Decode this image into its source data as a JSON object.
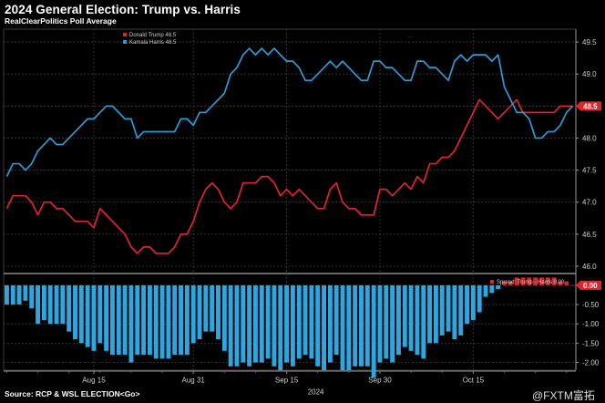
{
  "title": "2024 General Election: Trump vs. Harris",
  "subtitle": "RealClearPolitics Poll Average",
  "source": "Source: RCP & WSL ELECTION<Go>",
  "watermark": "@FXTM富拓",
  "chart_data": [
    {
      "type": "line",
      "x_tick_labels": [
        "Aug 15",
        "Aug 31",
        "Sep 15",
        "Sep 30",
        "Oct 15"
      ],
      "x_year_label": "2024",
      "ylim": [
        45.9,
        49.7
      ],
      "y_ticks": [
        46.0,
        46.5,
        47.0,
        47.5,
        48.0,
        48.5,
        49.0,
        49.5
      ],
      "y_tick_labels": [
        "46.0",
        "46.5",
        "47.0",
        "47.5",
        "48.0",
        "48.5",
        "49.0",
        "49.5"
      ],
      "axis_side": "right",
      "grid": true,
      "legend_placement": "top-left",
      "n_days": 92,
      "series": [
        {
          "name": "Donald Trump",
          "legend_value": "48.5",
          "color": "#e0242c",
          "last_value_label": "48.5",
          "values": [
            46.9,
            47.1,
            47.1,
            47.1,
            47.0,
            46.8,
            47.0,
            47.0,
            46.9,
            46.9,
            46.8,
            46.7,
            46.7,
            46.7,
            46.6,
            46.9,
            46.8,
            46.7,
            46.6,
            46.5,
            46.3,
            46.2,
            46.3,
            46.3,
            46.2,
            46.2,
            46.2,
            46.3,
            46.5,
            46.5,
            46.7,
            47.0,
            47.2,
            47.3,
            47.2,
            47.0,
            46.9,
            47.0,
            47.3,
            47.3,
            47.3,
            47.4,
            47.4,
            47.3,
            47.1,
            47.2,
            47.1,
            47.2,
            47.1,
            47.0,
            46.9,
            46.9,
            47.2,
            47.3,
            47.0,
            46.9,
            46.9,
            46.8,
            46.8,
            46.8,
            47.2,
            47.2,
            47.1,
            47.2,
            47.3,
            47.2,
            47.4,
            47.3,
            47.6,
            47.6,
            47.7,
            47.7,
            47.8,
            48.0,
            48.2,
            48.4,
            48.6,
            48.5,
            48.4,
            48.3,
            48.4,
            48.5,
            48.6,
            48.4,
            48.4,
            48.4,
            48.4,
            48.4,
            48.4,
            48.5,
            48.5,
            48.5
          ]
        },
        {
          "name": "Kamala Harris",
          "legend_value": "48.5",
          "color": "#2f9bd6",
          "last_value_label": "48.5",
          "values": [
            47.4,
            47.6,
            47.6,
            47.5,
            47.6,
            47.8,
            47.9,
            48.0,
            47.9,
            47.9,
            48.0,
            48.1,
            48.2,
            48.3,
            48.3,
            48.4,
            48.5,
            48.5,
            48.4,
            48.3,
            48.3,
            48.0,
            48.1,
            48.1,
            48.1,
            48.1,
            48.1,
            48.1,
            48.3,
            48.3,
            48.2,
            48.4,
            48.4,
            48.5,
            48.6,
            48.7,
            49.0,
            49.1,
            49.3,
            49.4,
            49.3,
            49.4,
            49.3,
            49.4,
            49.3,
            49.2,
            49.2,
            49.1,
            48.9,
            48.9,
            49.0,
            49.1,
            49.2,
            49.1,
            49.2,
            49.1,
            49.0,
            48.9,
            48.9,
            49.2,
            49.2,
            49.1,
            49.1,
            49.0,
            48.9,
            48.9,
            49.2,
            49.2,
            49.1,
            49.1,
            49.0,
            48.9,
            49.2,
            49.3,
            49.2,
            49.3,
            49.3,
            49.3,
            49.2,
            49.3,
            48.8,
            48.6,
            48.4,
            48.4,
            48.3,
            48.0,
            48.0,
            48.1,
            48.1,
            48.2,
            48.4,
            48.5
          ]
        }
      ]
    },
    {
      "type": "bar",
      "ylim": [
        -2.2,
        0.28
      ],
      "y_ticks": [
        -2.0,
        -1.5,
        -1.0,
        -0.5,
        0.0
      ],
      "y_tick_labels": [
        "-2.00",
        "-1.50",
        "-1.00",
        "-0.50",
        "0.00"
      ],
      "axis_side": "right",
      "grid": true,
      "legend_placement": "top-right",
      "series": [
        {
          "name": "Spread: Trump - Harris",
          "legend_value": "0.00",
          "color": "#e0242c",
          "negative_color": "#2ea7e0",
          "last_value_label": "0.00",
          "values": [
            -0.5,
            -0.5,
            -0.5,
            -0.4,
            -0.6,
            -1.0,
            -0.9,
            -1.0,
            -1.0,
            -1.0,
            -1.2,
            -1.4,
            -1.5,
            -1.6,
            -1.7,
            -1.5,
            -1.7,
            -1.8,
            -1.8,
            -1.8,
            -2.0,
            -1.8,
            -1.8,
            -1.8,
            -1.9,
            -1.9,
            -1.9,
            -1.8,
            -1.8,
            -1.8,
            -1.5,
            -1.4,
            -1.2,
            -1.2,
            -1.4,
            -1.7,
            -2.1,
            -2.1,
            -2.0,
            -2.1,
            -2.0,
            -2.0,
            -1.9,
            -2.1,
            -2.2,
            -2.0,
            -2.1,
            -1.9,
            -1.8,
            -1.9,
            -2.1,
            -2.2,
            -2.0,
            -1.8,
            -2.2,
            -2.2,
            -2.1,
            -2.1,
            -2.1,
            -2.4,
            -2.0,
            -1.9,
            -2.0,
            -1.8,
            -1.6,
            -1.7,
            -1.8,
            -1.9,
            -1.5,
            -1.5,
            -1.3,
            -1.2,
            -1.4,
            -1.3,
            -1.0,
            -0.9,
            -0.7,
            -0.3,
            -0.2,
            -0.1,
            0.1,
            0.1,
            0.2,
            0.2,
            0.2,
            0.2,
            0.2,
            0.2,
            0.2,
            0.1,
            0.1,
            0.0
          ]
        }
      ]
    }
  ]
}
